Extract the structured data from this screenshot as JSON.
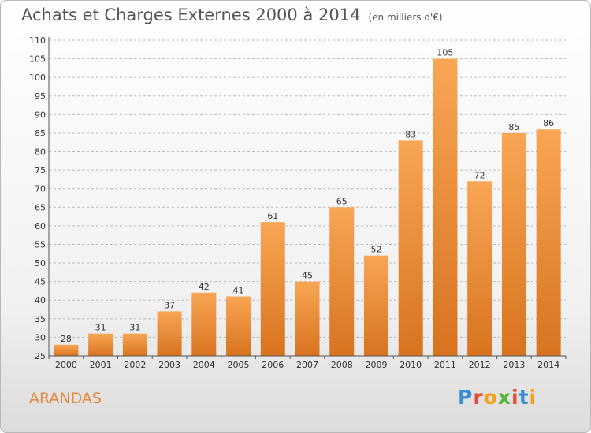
{
  "header": {
    "title": "Achats et Charges Externes 2000 à 2014",
    "subtitle": "(en milliers d'€)"
  },
  "footer": {
    "commune": "ARANDAS",
    "logo": "Proxiti",
    "logo_colors": [
      "#3a8fd6",
      "#e94c3d",
      "#f4a21b",
      "#5bb33b",
      "#e94c3d",
      "#3a8fd6",
      "#f4a21b"
    ]
  },
  "colors": {
    "bar_top": "#f8a655",
    "bar_bottom": "#d8731e",
    "grid": "#bbbbbb"
  },
  "chart_data": {
    "type": "bar",
    "categories": [
      "2000",
      "2001",
      "2002",
      "2003",
      "2004",
      "2005",
      "2006",
      "2007",
      "2008",
      "2009",
      "2010",
      "2011",
      "2012",
      "2013",
      "2014"
    ],
    "values": [
      28,
      31,
      31,
      37,
      42,
      41,
      61,
      45,
      65,
      52,
      83,
      105,
      72,
      85,
      86
    ],
    "title": "Achats et Charges Externes 2000 à 2014",
    "xlabel": "",
    "ylabel": "",
    "ylim": [
      25,
      110
    ],
    "yticks": [
      25,
      30,
      35,
      40,
      45,
      50,
      55,
      60,
      65,
      70,
      75,
      80,
      85,
      90,
      95,
      100,
      105,
      110
    ],
    "grid": true
  }
}
